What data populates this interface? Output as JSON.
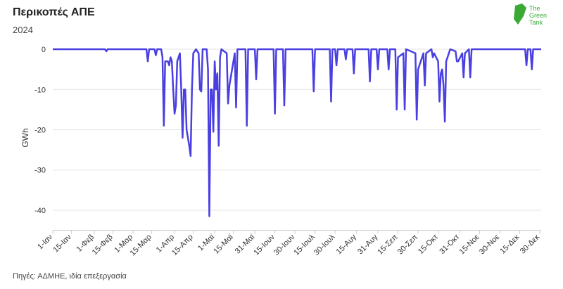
{
  "logo": [
    "The",
    "Green",
    "Tank"
  ],
  "chart_data": {
    "type": "line",
    "title": "Περικοπές ΑΠΕ",
    "subtitle": "2024",
    "y_label": "GWh",
    "source": "Πηγές: ΑΔΜΗΕ, ιδία επεξεργασία",
    "color": "#4a3fe0",
    "grid": true,
    "x": [
      0,
      39,
      40,
      41,
      70,
      71,
      72,
      76,
      77,
      78,
      81,
      82,
      83,
      84,
      86,
      87,
      88,
      89,
      90,
      91,
      92,
      93,
      95,
      96,
      97,
      98,
      99,
      100,
      102,
      103,
      104,
      105,
      106,
      107,
      109,
      110,
      111,
      112,
      115,
      116,
      117,
      118,
      119,
      120,
      121,
      122,
      123,
      124,
      125,
      126,
      130,
      131,
      132,
      136,
      137,
      138,
      144,
      145,
      146,
      151,
      152,
      153,
      165,
      166,
      167,
      172,
      173,
      174,
      194,
      195,
      196,
      207,
      208,
      209,
      211,
      212,
      213,
      218,
      219,
      220,
      224,
      225,
      226,
      236,
      237,
      238,
      242,
      243,
      244,
      250,
      251,
      252,
      256,
      257,
      258,
      262,
      263,
      264,
      271,
      272,
      273,
      277,
      278,
      279,
      283,
      284,
      285,
      288,
      289,
      290,
      291,
      292,
      293,
      294,
      295,
      296,
      297,
      301,
      302,
      303,
      306,
      307,
      308,
      311,
      312,
      313,
      353,
      354,
      355,
      357,
      358,
      359,
      365
    ],
    "values": [
      0,
      0,
      -0.5,
      0,
      0,
      -3,
      0,
      0,
      -1.5,
      0,
      0,
      -2,
      -19,
      -3,
      -3,
      -4,
      -2,
      -3,
      -10,
      -16,
      -14,
      -3,
      -1,
      -10,
      -22,
      -10,
      -10,
      -20,
      -24,
      -26.5,
      -10,
      -1,
      -0.5,
      0,
      -1,
      -10,
      -10.5,
      0,
      0,
      -5,
      -41.5,
      -10,
      -10,
      -20.5,
      -3,
      -10,
      -6,
      -24,
      -2,
      0,
      -1,
      -13.5,
      -9,
      -1,
      -14.5,
      0,
      0,
      -19,
      0,
      0,
      -7.5,
      0,
      0,
      -16,
      0,
      0,
      -14,
      0,
      0,
      -10.5,
      0,
      0,
      -13,
      0,
      0,
      -4,
      0,
      0,
      -2.5,
      0,
      0,
      -6,
      0,
      0,
      -8,
      0,
      0,
      -5,
      0,
      0,
      -5,
      0,
      0,
      -15,
      -2,
      -1,
      -15,
      0,
      -1,
      -17.5,
      -5,
      -1,
      -9,
      -1,
      0,
      -2,
      -1,
      -3,
      -13,
      -6,
      -5,
      -9,
      -18,
      -3,
      -2,
      -1,
      0,
      -0.5,
      -3,
      -3,
      -1,
      -7,
      -1,
      0,
      -7,
      0,
      0,
      -4,
      0,
      0,
      -5,
      0,
      0
    ],
    "xlim": [
      0,
      365
    ],
    "ylim": [
      -45,
      1
    ],
    "xticks": [
      {
        "value": 0,
        "label": "1-Ιαν"
      },
      {
        "value": 14,
        "label": "15-Ιαν"
      },
      {
        "value": 31,
        "label": "1-Φεβ"
      },
      {
        "value": 45,
        "label": "15-Φεβ"
      },
      {
        "value": 60,
        "label": "1-Μαρ"
      },
      {
        "value": 74,
        "label": "15-Μαρ"
      },
      {
        "value": 91,
        "label": "1-Απρ"
      },
      {
        "value": 105,
        "label": "15-Απρ"
      },
      {
        "value": 121,
        "label": "1-Μαϊ"
      },
      {
        "value": 135,
        "label": "15-Μαϊ"
      },
      {
        "value": 151,
        "label": "31-Μαϊ"
      },
      {
        "value": 166,
        "label": "15-Ιουν"
      },
      {
        "value": 181,
        "label": "30-Ιουν"
      },
      {
        "value": 196,
        "label": "15-Ιουλ"
      },
      {
        "value": 211,
        "label": "30-Ιουλ"
      },
      {
        "value": 227,
        "label": "15-Αυγ"
      },
      {
        "value": 243,
        "label": "31-Αυγ"
      },
      {
        "value": 258,
        "label": "15-Σεπ"
      },
      {
        "value": 273,
        "label": "30-Σεπ"
      },
      {
        "value": 288,
        "label": "15-Οκτ"
      },
      {
        "value": 304,
        "label": "31-Οκτ"
      },
      {
        "value": 319,
        "label": "15-Νοε"
      },
      {
        "value": 334,
        "label": "30-Νοε"
      },
      {
        "value": 349,
        "label": "15-Δεκ"
      },
      {
        "value": 364,
        "label": "30-Δεκ"
      }
    ],
    "yticks": [
      0,
      -10,
      -20,
      -30,
      -40
    ]
  }
}
